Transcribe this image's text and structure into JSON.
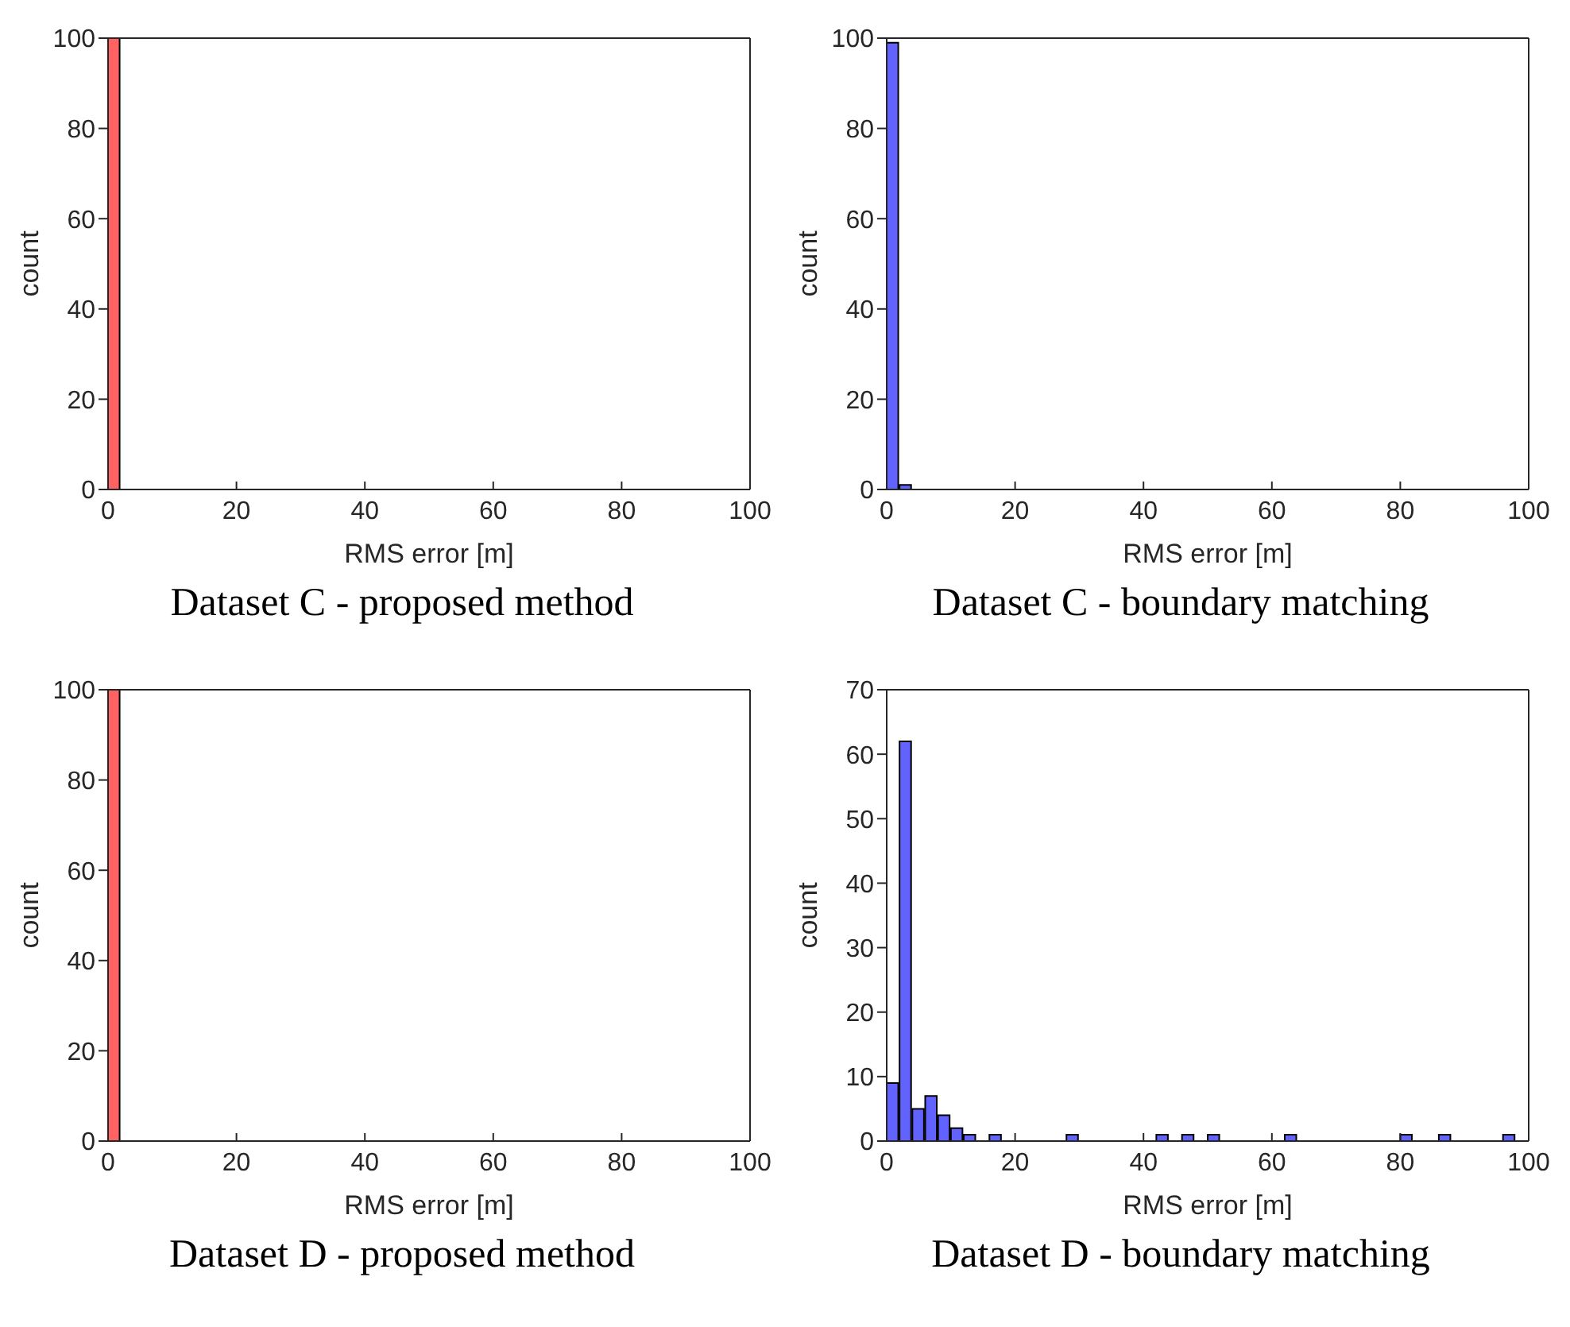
{
  "chart_data": [
    {
      "type": "histogram",
      "title": "Dataset C - proposed method",
      "xlabel": "RMS error [m]",
      "ylabel": "count",
      "color": "#ff6262",
      "bins": [
        0,
        2,
        4,
        6,
        8,
        10,
        12,
        14,
        16,
        18,
        20,
        22,
        24,
        26,
        28,
        30,
        32,
        34,
        36,
        38,
        40,
        42,
        44,
        46,
        48,
        50,
        52,
        54,
        56,
        58,
        60,
        62,
        64,
        66,
        68,
        70,
        72,
        74,
        76,
        78,
        80,
        82,
        84,
        86,
        88,
        90,
        92,
        94,
        96,
        98,
        100
      ],
      "values": [
        100,
        0,
        0,
        0,
        0,
        0,
        0,
        0,
        0,
        0,
        0,
        0,
        0,
        0,
        0,
        0,
        0,
        0,
        0,
        0,
        0,
        0,
        0,
        0,
        0,
        0,
        0,
        0,
        0,
        0,
        0,
        0,
        0,
        0,
        0,
        0,
        0,
        0,
        0,
        0,
        0,
        0,
        0,
        0,
        0,
        0,
        0,
        0,
        0,
        0
      ],
      "xlim": [
        0,
        100
      ],
      "xticks": [
        0,
        20,
        40,
        60,
        80,
        100
      ],
      "ylim": [
        0,
        100
      ],
      "yticks": [
        0,
        20,
        40,
        60,
        80,
        100
      ]
    },
    {
      "type": "histogram",
      "title": "Dataset C - boundary matching",
      "xlabel": "RMS error [m]",
      "ylabel": "count",
      "color": "#6262ff",
      "bins": [
        0,
        2,
        4,
        6,
        8,
        10,
        12,
        14,
        16,
        18,
        20,
        22,
        24,
        26,
        28,
        30,
        32,
        34,
        36,
        38,
        40,
        42,
        44,
        46,
        48,
        50,
        52,
        54,
        56,
        58,
        60,
        62,
        64,
        66,
        68,
        70,
        72,
        74,
        76,
        78,
        80,
        82,
        84,
        86,
        88,
        90,
        92,
        94,
        96,
        98,
        100
      ],
      "values": [
        99,
        1,
        0,
        0,
        0,
        0,
        0,
        0,
        0,
        0,
        0,
        0,
        0,
        0,
        0,
        0,
        0,
        0,
        0,
        0,
        0,
        0,
        0,
        0,
        0,
        0,
        0,
        0,
        0,
        0,
        0,
        0,
        0,
        0,
        0,
        0,
        0,
        0,
        0,
        0,
        0,
        0,
        0,
        0,
        0,
        0,
        0,
        0,
        0,
        0
      ],
      "xlim": [
        0,
        100
      ],
      "xticks": [
        0,
        20,
        40,
        60,
        80,
        100
      ],
      "ylim": [
        0,
        100
      ],
      "yticks": [
        0,
        20,
        40,
        60,
        80,
        100
      ]
    },
    {
      "type": "histogram",
      "title": "Dataset D - proposed method",
      "xlabel": "RMS error [m]",
      "ylabel": "count",
      "color": "#ff6262",
      "bins": [
        0,
        2,
        4,
        6,
        8,
        10,
        12,
        14,
        16,
        18,
        20,
        22,
        24,
        26,
        28,
        30,
        32,
        34,
        36,
        38,
        40,
        42,
        44,
        46,
        48,
        50,
        52,
        54,
        56,
        58,
        60,
        62,
        64,
        66,
        68,
        70,
        72,
        74,
        76,
        78,
        80,
        82,
        84,
        86,
        88,
        90,
        92,
        94,
        96,
        98,
        100
      ],
      "values": [
        100,
        0,
        0,
        0,
        0,
        0,
        0,
        0,
        0,
        0,
        0,
        0,
        0,
        0,
        0,
        0,
        0,
        0,
        0,
        0,
        0,
        0,
        0,
        0,
        0,
        0,
        0,
        0,
        0,
        0,
        0,
        0,
        0,
        0,
        0,
        0,
        0,
        0,
        0,
        0,
        0,
        0,
        0,
        0,
        0,
        0,
        0,
        0,
        0,
        0
      ],
      "xlim": [
        0,
        100
      ],
      "xticks": [
        0,
        20,
        40,
        60,
        80,
        100
      ],
      "ylim": [
        0,
        100
      ],
      "yticks": [
        0,
        20,
        40,
        60,
        80,
        100
      ]
    },
    {
      "type": "histogram",
      "title": "Dataset D - boundary matching",
      "xlabel": "RMS error [m]",
      "ylabel": "count",
      "color": "#6262ff",
      "bins": [
        0,
        2,
        4,
        6,
        8,
        10,
        12,
        14,
        16,
        18,
        20,
        22,
        24,
        26,
        28,
        30,
        32,
        34,
        36,
        38,
        40,
        42,
        44,
        46,
        48,
        50,
        52,
        54,
        56,
        58,
        60,
        62,
        64,
        66,
        68,
        70,
        72,
        74,
        76,
        78,
        80,
        82,
        84,
        86,
        88,
        90,
        92,
        94,
        96,
        98,
        100
      ],
      "values": [
        9,
        62,
        5,
        7,
        4,
        2,
        1,
        0,
        1,
        0,
        0,
        0,
        0,
        0,
        1,
        0,
        0,
        0,
        0,
        0,
        0,
        1,
        0,
        1,
        0,
        1,
        0,
        0,
        0,
        0,
        0,
        1,
        0,
        0,
        0,
        0,
        0,
        0,
        0,
        0,
        1,
        0,
        0,
        1,
        0,
        0,
        0,
        0,
        1,
        0
      ],
      "xlim": [
        0,
        100
      ],
      "xticks": [
        0,
        20,
        40,
        60,
        80,
        100
      ],
      "ylim": [
        0,
        70
      ],
      "yticks": [
        0,
        10,
        20,
        30,
        40,
        50,
        60,
        70
      ]
    }
  ]
}
